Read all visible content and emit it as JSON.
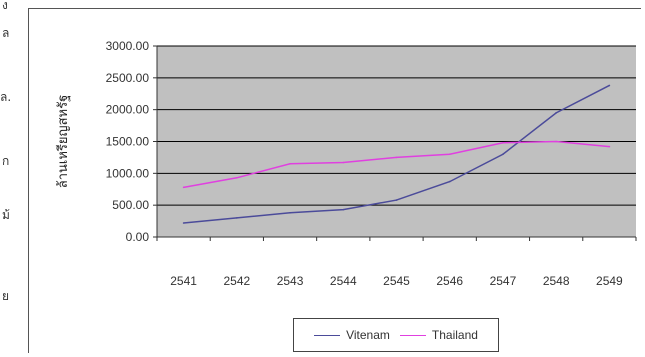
{
  "edge_fragments": [
    "ง",
    "ล",
    "ล.",
    "ก",
    "ม้",
    "ย"
  ],
  "chart_data": {
    "type": "line",
    "title": "",
    "xlabel": "",
    "ylabel": "ล้านเหรียญสหรัฐ",
    "categories": [
      "2541",
      "2542",
      "2543",
      "2544",
      "2545",
      "2546",
      "2547",
      "2548",
      "2549"
    ],
    "ylim": [
      0,
      3000
    ],
    "yticks": [
      "0.00",
      "500.00",
      "1000.00",
      "1500.00",
      "2000.00",
      "2500.00",
      "3000.00"
    ],
    "grid": true,
    "plot_background": "#c0c0c0",
    "legend_position": "bottom",
    "series": [
      {
        "name": "Vitenam",
        "color": "#4b4b9a",
        "values": [
          220,
          300,
          380,
          430,
          580,
          870,
          1300,
          1950,
          2380
        ]
      },
      {
        "name": "Thailand",
        "color": "#e040e0",
        "values": [
          780,
          930,
          1150,
          1170,
          1250,
          1300,
          1480,
          1500,
          1420
        ]
      }
    ]
  }
}
